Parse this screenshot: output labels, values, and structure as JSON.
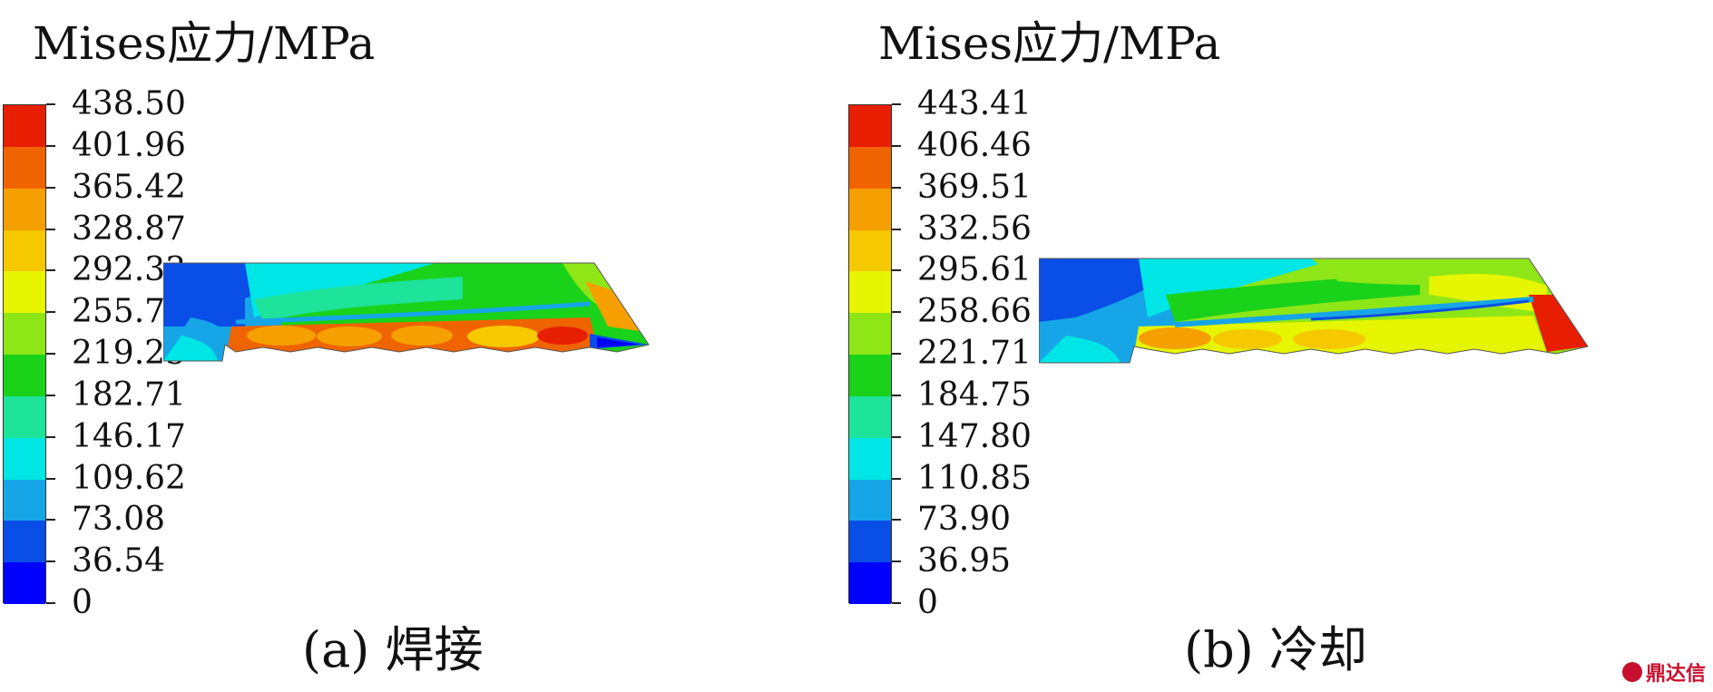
{
  "colors": [
    "#0000ff",
    "#0a4ee8",
    "#16a6e8",
    "#00e6e6",
    "#1ee39b",
    "#1ad21a",
    "#8ee617",
    "#e6f500",
    "#f5c800",
    "#f5a000",
    "#f06400",
    "#e81e00"
  ],
  "panels": [
    {
      "title": "Mises应力/MPa",
      "ticks": [
        "438.50",
        "401.96",
        "365.42",
        "328.87",
        "292.33",
        "255.79",
        "219.25",
        "182.71",
        "146.17",
        "109.62",
        "73.08",
        "36.54",
        "0"
      ],
      "caption": "(a) 焊接"
    },
    {
      "title": "Mises应力/MPa",
      "ticks": [
        "443.41",
        "406.46",
        "369.51",
        "332.56",
        "295.61",
        "258.66",
        "221.71",
        "184.75",
        "147.80",
        "110.85",
        "73.90",
        "36.95",
        "0"
      ],
      "caption": "(b) 冷却"
    }
  ],
  "watermark": "鼎达信"
}
